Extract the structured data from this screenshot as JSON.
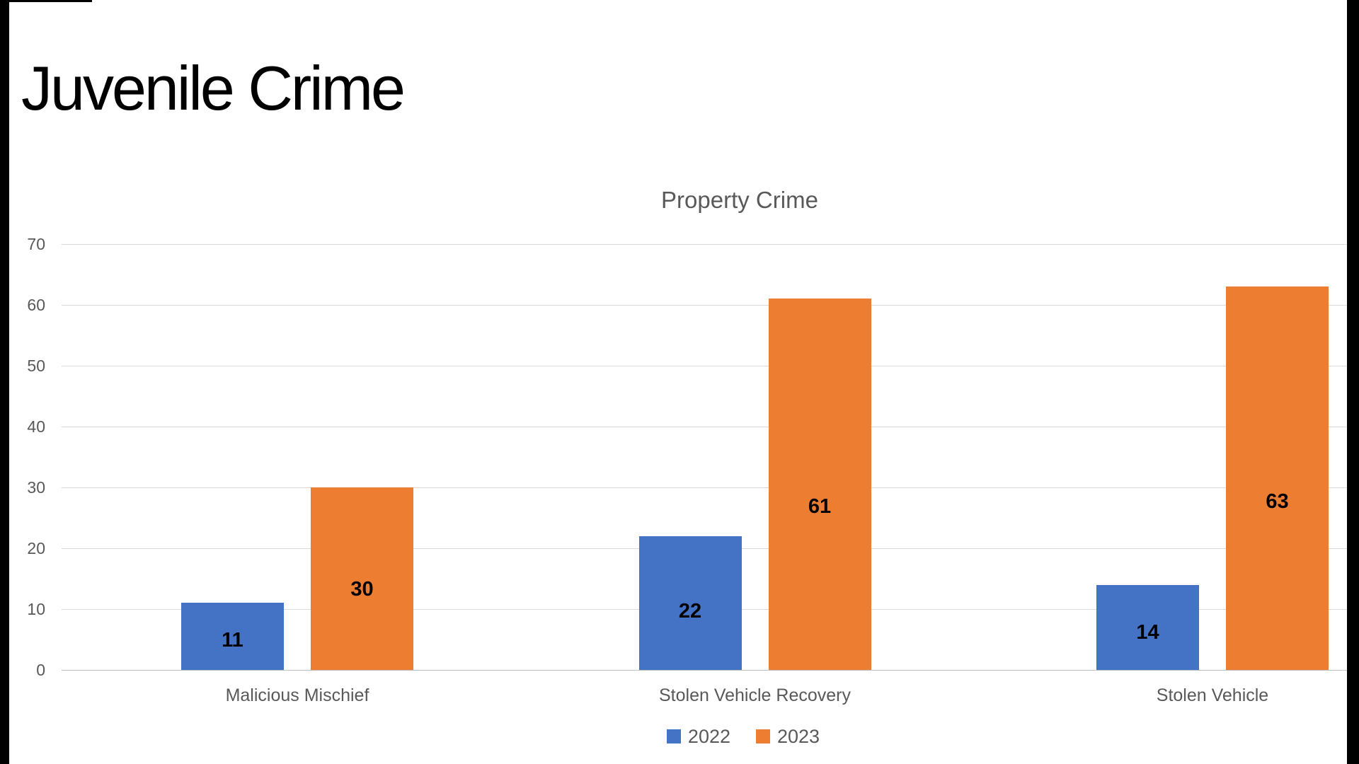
{
  "slide": {
    "title": "Juvenile Crime"
  },
  "chart_data": {
    "type": "bar",
    "title": "Property Crime",
    "categories": [
      "Malicious Mischief",
      "Stolen Vehicle Recovery",
      "Stolen Vehicle"
    ],
    "series": [
      {
        "name": "2022",
        "color": "#4472C4",
        "values": [
          11,
          22,
          14
        ]
      },
      {
        "name": "2023",
        "color": "#ED7D31",
        "values": [
          30,
          61,
          63
        ]
      }
    ],
    "xlabel": "",
    "ylabel": "",
    "ylim": [
      0,
      70
    ],
    "yticks": [
      0,
      10,
      20,
      30,
      40,
      50,
      60,
      70
    ],
    "grid": true,
    "legend_position": "bottom",
    "data_labels": "inside-center",
    "colors": {
      "text": "#595959",
      "gridline": "#D9D9D9",
      "zero_line": "#BFBFBF",
      "data_label": "#000000"
    }
  }
}
